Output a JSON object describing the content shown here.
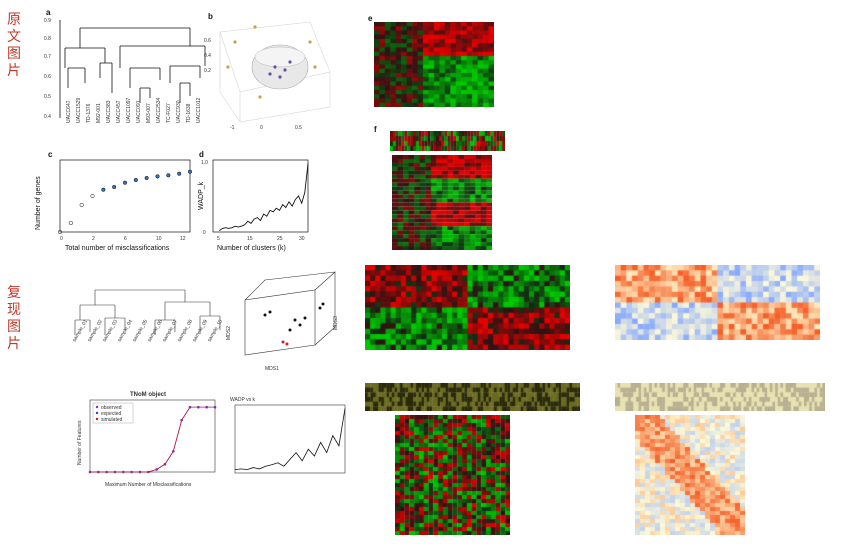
{
  "section_labels": {
    "original": "原文图片",
    "reproduced": "复现图片"
  },
  "original": {
    "panel_a": {
      "letter": "a",
      "yticks": [
        "0.4",
        "0.5",
        "0.6",
        "0.7",
        "0.8",
        "0.9"
      ]
    },
    "panel_b": {
      "letter": "b"
    },
    "panel_c": {
      "letter": "c",
      "xlabel": "Total number of misclassifications",
      "ylabel": "Number of genes"
    },
    "panel_d": {
      "letter": "d",
      "xlabel": "Number of clusters (k)",
      "ylabel": "WADP_k"
    },
    "panel_e": {
      "letter": "e"
    },
    "panel_f": {
      "letter": "f"
    }
  },
  "reproduced": {
    "tnom": {
      "title": "TNoM object",
      "xlabel": "Maximum Number of Misclassifications",
      "ylabel": "Number of Features",
      "legend": [
        "observed",
        "expected",
        "simulated"
      ]
    },
    "wadp": {
      "title": "WADP vs k"
    },
    "mds": {
      "xlabel": "MDS1",
      "ylabel": "MDS2",
      "zlabel": "MDS3"
    }
  },
  "colors": {
    "accent": "#c0392b",
    "heat_red": "#d7191c",
    "heat_green": "#1a9641",
    "heat_dark": "#000000",
    "purple": "#7b2fbf"
  },
  "chart_data": [
    {
      "type": "scatter",
      "title": "",
      "xlabel": "Total number of misclassifications",
      "ylabel": "Number of genes",
      "x": [
        0,
        1,
        2,
        3,
        4,
        5,
        6,
        7,
        8,
        9,
        10,
        11,
        12
      ],
      "series": [
        {
          "name": "",
          "values": [
            0.0001,
            0.001,
            0.1,
            1,
            5,
            10,
            30,
            60,
            100,
            150,
            200,
            300,
            500
          ]
        }
      ],
      "yscale": "log",
      "ylim": [
        0.0001,
        10000
      ],
      "xlim": [
        0,
        12
      ]
    },
    {
      "type": "line",
      "title": "",
      "xlabel": "Number of clusters (k)",
      "ylabel": "WADP_k",
      "x": [
        2,
        3,
        4,
        5,
        6,
        7,
        8,
        9,
        10,
        11,
        12,
        13,
        14,
        15,
        16,
        17,
        18,
        19,
        20,
        21,
        22,
        23,
        24,
        25,
        26,
        27,
        28,
        29,
        30
      ],
      "series": [
        {
          "name": "",
          "values": [
            0.02,
            0.05,
            0.06,
            0.05,
            0.06,
            0.08,
            0.07,
            0.08,
            0.1,
            0.15,
            0.12,
            0.18,
            0.2,
            0.16,
            0.25,
            0.22,
            0.3,
            0.28,
            0.33,
            0.3,
            0.38,
            0.34,
            0.42,
            0.36,
            0.45,
            0.5,
            0.4,
            0.55,
            0.95
          ]
        }
      ],
      "ylim": [
        0,
        1
      ],
      "xlim": [
        0,
        30
      ]
    },
    {
      "type": "line",
      "title": "TNoM object",
      "xlabel": "Maximum Number of Misclassifications",
      "ylabel": "Number of Features",
      "x": [
        0,
        1,
        2,
        3,
        4,
        5,
        6,
        7,
        8,
        9,
        10,
        11,
        12,
        13,
        14,
        15
      ],
      "series": [
        {
          "name": "observed",
          "values": [
            0,
            0,
            0,
            0,
            0,
            0,
            0,
            0,
            1,
            3,
            8,
            20,
            25,
            25,
            25,
            25
          ]
        },
        {
          "name": "expected",
          "values": [
            0,
            0,
            0,
            0,
            0,
            0,
            0,
            0,
            1,
            3,
            8,
            20,
            25,
            25,
            25,
            25
          ]
        },
        {
          "name": "simulated",
          "values": [
            0,
            0,
            0,
            0,
            0,
            0,
            0,
            0,
            1,
            3,
            8,
            20,
            25,
            25,
            25,
            25
          ]
        }
      ],
      "xlim": [
        0,
        15
      ]
    },
    {
      "type": "line",
      "title": "WADP vs k",
      "xlabel": "",
      "ylabel": "",
      "x": [
        2,
        3,
        4,
        5,
        6,
        7,
        8,
        9,
        10,
        11,
        12,
        13,
        14,
        15,
        16,
        17,
        18,
        19,
        20
      ],
      "series": [
        {
          "name": "",
          "values": [
            0.05,
            0.06,
            0.05,
            0.08,
            0.06,
            0.1,
            0.12,
            0.15,
            0.1,
            0.2,
            0.3,
            0.18,
            0.35,
            0.25,
            0.45,
            0.3,
            0.55,
            0.4,
            0.95
          ]
        }
      ],
      "ylim": [
        0,
        1
      ]
    }
  ]
}
